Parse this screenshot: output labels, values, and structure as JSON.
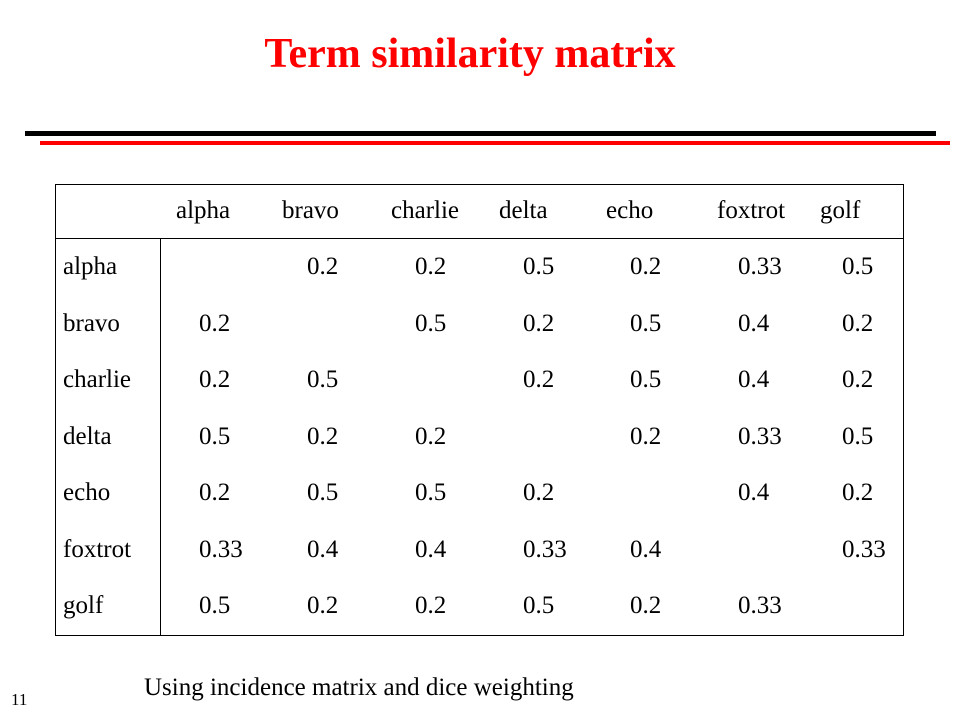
{
  "slide": {
    "title": "Term similarity matrix",
    "footnote": "Using incidence matrix and dice weighting",
    "page_number": "11"
  },
  "colors": {
    "title": "#ff0000",
    "top_rule": "#000000",
    "second_rule": "#ff0000"
  },
  "matrix": {
    "column_headers": [
      "alpha",
      "bravo",
      "charlie",
      "delta",
      "echo",
      "foxtrot",
      "golf"
    ],
    "rows": [
      {
        "label": "alpha",
        "values": [
          "",
          "0.2",
          "0.2",
          "0.5",
          "0.2",
          "0.33",
          "0.5"
        ]
      },
      {
        "label": "bravo",
        "values": [
          "0.2",
          "",
          "0.5",
          "0.2",
          "0.5",
          "0.4",
          "0.2"
        ]
      },
      {
        "label": "charlie",
        "values": [
          "0.2",
          "0.5",
          "",
          "0.2",
          "0.5",
          "0.4",
          "0.2"
        ]
      },
      {
        "label": "delta",
        "values": [
          "0.5",
          "0.2",
          "0.2",
          "",
          "0.2",
          "0.33",
          "0.5"
        ]
      },
      {
        "label": "echo",
        "values": [
          "0.2",
          "0.5",
          "0.5",
          "0.2",
          "",
          "0.4",
          "0.2"
        ]
      },
      {
        "label": "foxtrot",
        "values": [
          "0.33",
          "0.4",
          "0.4",
          "0.33",
          "0.4",
          "",
          "0.33"
        ]
      },
      {
        "label": "golf",
        "values": [
          "0.5",
          "0.2",
          "0.2",
          "0.5",
          "0.2",
          "0.33",
          ""
        ]
      }
    ]
  }
}
